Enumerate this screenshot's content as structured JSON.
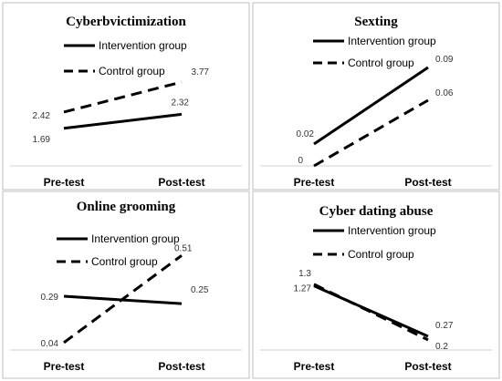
{
  "chart_data": [
    {
      "type": "line",
      "title": "Cyberbvictimization",
      "categories": [
        "Pre-test",
        "Post-test"
      ],
      "series": [
        {
          "name": "Intervention group",
          "style": "solid",
          "values": [
            1.69,
            2.32
          ],
          "labels": [
            "1.69",
            "2.32"
          ]
        },
        {
          "name": "Control group",
          "style": "dashed",
          "values": [
            2.42,
            3.77
          ],
          "labels": [
            "2.42",
            "3.77"
          ]
        }
      ],
      "ylim": [
        0,
        5
      ],
      "legend_position": "top-center",
      "grid": false
    },
    {
      "type": "line",
      "title": "Sexting",
      "categories": [
        "Pre-test",
        "Post-test"
      ],
      "series": [
        {
          "name": "Intervention group",
          "style": "solid",
          "values": [
            0.02,
            0.09
          ],
          "labels": [
            "0.02",
            "0.09"
          ]
        },
        {
          "name": "Control group",
          "style": "dashed",
          "values": [
            0,
            0.06
          ],
          "labels": [
            "0",
            "0.06"
          ]
        }
      ],
      "ylim": [
        0,
        0.1
      ],
      "legend_position": "top-center",
      "grid": false
    },
    {
      "type": "line",
      "title": "Online grooming",
      "categories": [
        "Pre-test",
        "Post-test"
      ],
      "series": [
        {
          "name": "Intervention group",
          "style": "solid",
          "values": [
            0.29,
            0.25
          ],
          "labels": [
            "0.29",
            "0.25"
          ]
        },
        {
          "name": "Control group",
          "style": "dashed",
          "values": [
            0.04,
            0.51
          ],
          "labels": [
            "0.04",
            "0.51"
          ]
        }
      ],
      "ylim": [
        0,
        0.6
      ],
      "legend_position": "top-center",
      "grid": false
    },
    {
      "type": "line",
      "title": "Cyber dating abuse",
      "categories": [
        "Pre-test",
        "Post-test"
      ],
      "series": [
        {
          "name": "Intervention group",
          "style": "solid",
          "values": [
            1.27,
            0.27
          ],
          "labels": [
            "1.27",
            "0.27"
          ]
        },
        {
          "name": "Control group",
          "style": "dashed",
          "values": [
            1.3,
            0.2
          ],
          "labels": [
            "1.3",
            "0.2"
          ]
        }
      ],
      "ylim": [
        0,
        2.2
      ],
      "legend_position": "top-center",
      "grid": false
    }
  ]
}
